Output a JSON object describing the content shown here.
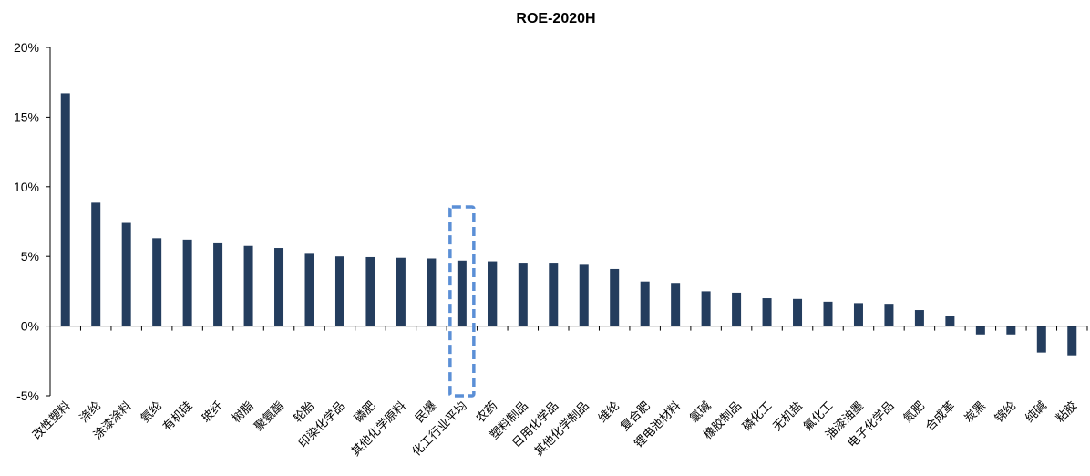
{
  "chart_data": {
    "type": "bar",
    "title": "ROE-2020H",
    "xlabel": "",
    "ylabel": "",
    "ylim": [
      -5,
      20
    ],
    "yticks": [
      -5,
      0,
      5,
      10,
      15,
      20
    ],
    "ytick_labels": [
      "-5%",
      "0%",
      "5%",
      "10%",
      "15%",
      "20%"
    ],
    "bar_color": "#243d5e",
    "highlight_color": "#5b8fd6",
    "highlight_category": "化工行业平均",
    "grid": false,
    "categories": [
      "改性塑料",
      "涤纶",
      "涂漆涂料",
      "氨纶",
      "有机硅",
      "玻纤",
      "树脂",
      "聚氨酯",
      "轮胎",
      "印染化学品",
      "磷肥",
      "其他化学原料",
      "民爆",
      "化工行业平均",
      "农药",
      "塑料制品",
      "日用化学品",
      "其他化学制品",
      "维纶",
      "复合肥",
      "锂电池材料",
      "氯碱",
      "橡胶制品",
      "磷化工",
      "无机盐",
      "氟化工",
      "油漆油墨",
      "电子化学品",
      "氮肥",
      "合成革",
      "炭黑",
      "锦纶",
      "纯碱",
      "粘胶"
    ],
    "values": [
      16.7,
      8.85,
      7.4,
      6.3,
      6.2,
      6.0,
      5.75,
      5.6,
      5.25,
      5.0,
      4.95,
      4.9,
      4.85,
      4.7,
      4.65,
      4.55,
      4.55,
      4.4,
      4.1,
      3.2,
      3.1,
      2.5,
      2.4,
      2.0,
      1.95,
      1.75,
      1.65,
      1.6,
      1.15,
      0.7,
      -0.6,
      -0.6,
      -1.9,
      -2.1
    ]
  }
}
